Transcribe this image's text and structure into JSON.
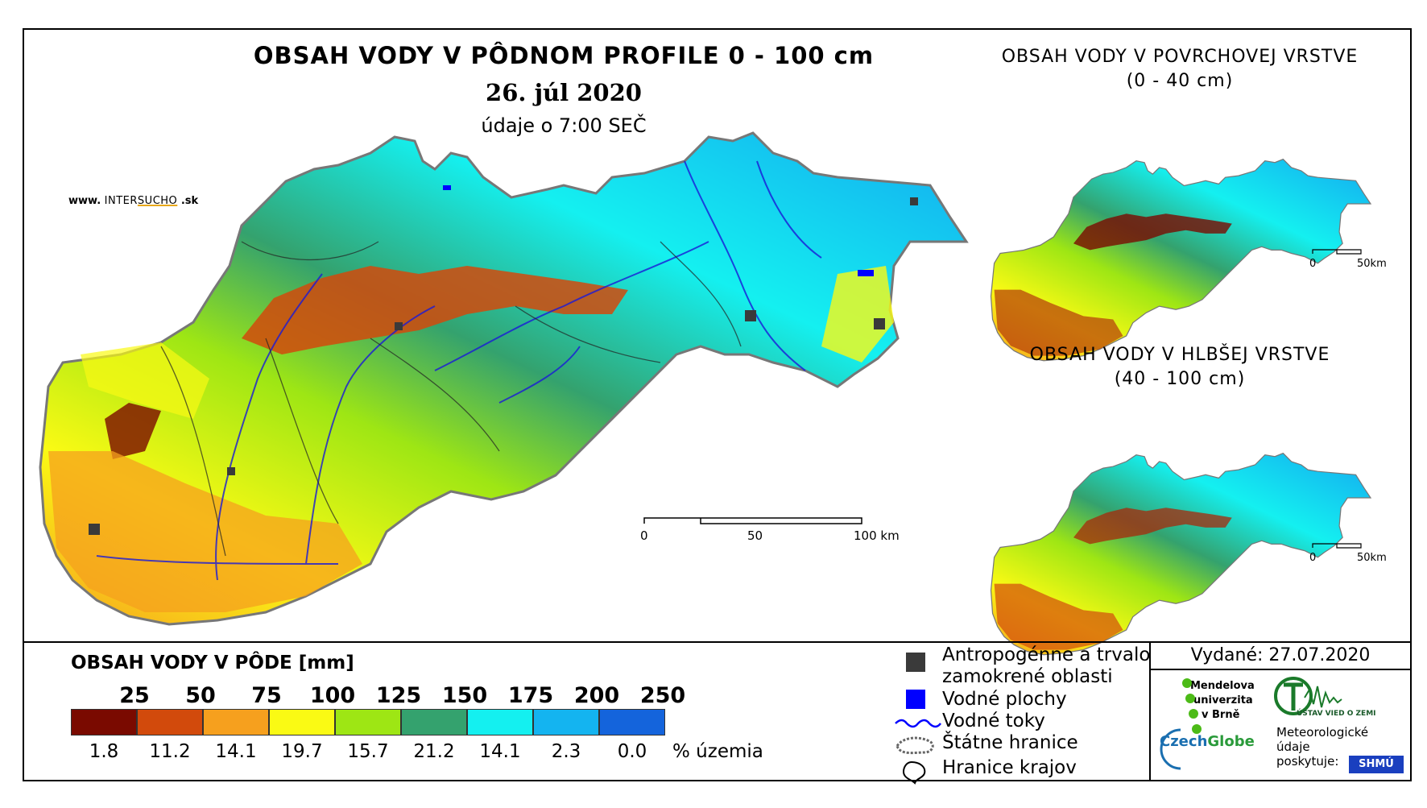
{
  "main_map": {
    "title": "OBSAH VODY V PÔDNOM PROFILE 0 - 100 cm",
    "date": "26. júl 2020",
    "time_note": "údaje o 7:00 SEČ",
    "website_prefix": "www.",
    "website_brand_a": "INTER",
    "website_brand_b": "SUCHO",
    "website_suffix": ".sk",
    "scalebar": {
      "label_0": "0",
      "label_50": "50",
      "label_100": "100 km"
    }
  },
  "surface_map": {
    "title_line1": "OBSAH VODY V POVRCHOVEJ VRSTVE",
    "title_line2": "(0 - 40 cm)",
    "scalebar": {
      "label_0": "0",
      "label_50": "50km"
    }
  },
  "deep_map": {
    "title_line1": "OBSAH VODY V HLBŠEJ VRSTVE",
    "title_line2": "(40 - 100 cm)",
    "scalebar": {
      "label_0": "0",
      "label_50": "50km"
    }
  },
  "legend": {
    "title": "OBSAH VODY V PÔDE [mm]",
    "thresholds": [
      "25",
      "50",
      "75",
      "100",
      "125",
      "150",
      "175",
      "200",
      "250"
    ],
    "colors": [
      "#7a0a00",
      "#d24a0c",
      "#f6a01e",
      "#fafa14",
      "#9ee614",
      "#34a26e",
      "#14f0f0",
      "#14b4f0",
      "#1464dc"
    ],
    "percentages": [
      "1.8",
      "11.2",
      "14.1",
      "19.7",
      "15.7",
      "21.2",
      "14.1",
      "2.3",
      "0.0"
    ],
    "percent_unit": "% územia"
  },
  "map_legend": {
    "anthropogenic_line1": "Antropogénne a trvalo",
    "anthropogenic_line2": "zamokrené oblasti",
    "water_bodies": "Vodné plochy",
    "rivers": "Vodné toky",
    "state_border": "Štátne hranice",
    "region_border": "Hranice krajov",
    "colors": {
      "anthropogenic": "#3a3a3a",
      "water_bodies": "#0000ff",
      "rivers": "#0000ff"
    }
  },
  "issue": {
    "label": "Vydané: 27.07.2020"
  },
  "credits": {
    "mendel_line1": "Mendelova",
    "mendel_line2": "univerzita",
    "mendel_line3": "v Brně",
    "ustav": "ÚSTAV VIED O ZEMI",
    "czechglobe_a": "Czech",
    "czechglobe_b": "Globe",
    "meteo_line1": "Meteorologické",
    "meteo_line2": "údaje",
    "meteo_line3": "poskytuje:",
    "shmu": "SHMÚ"
  }
}
